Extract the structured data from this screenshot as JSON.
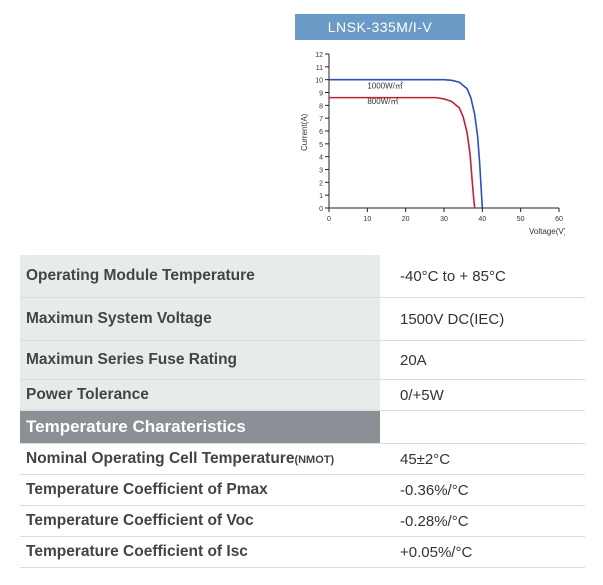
{
  "header": {
    "title": "LNSK-335M/I-V"
  },
  "chart": {
    "type": "line",
    "xlabel": "Voltage(V)",
    "ylabel": "Current(A)",
    "label_fontsize": 8,
    "tick_fontsize": 7,
    "xlim": [
      0,
      60
    ],
    "xtick_step": 10,
    "ylim": [
      0,
      12
    ],
    "ytick_step": 1,
    "background_color": "#ffffff",
    "axis_color": "#222222",
    "line_width": 1.6,
    "series": [
      {
        "name": "1000W/m²",
        "label": "1000W/㎡",
        "color": "#2a4fbf",
        "points": [
          [
            0,
            10.0
          ],
          [
            5,
            10.0
          ],
          [
            10,
            10.0
          ],
          [
            15,
            10.0
          ],
          [
            20,
            10.0
          ],
          [
            25,
            10.0
          ],
          [
            30,
            10.0
          ],
          [
            32,
            9.95
          ],
          [
            34,
            9.8
          ],
          [
            36,
            9.3
          ],
          [
            37,
            8.6
          ],
          [
            38,
            7.3
          ],
          [
            38.8,
            5.5
          ],
          [
            39.3,
            3.5
          ],
          [
            39.7,
            1.5
          ],
          [
            40,
            0
          ]
        ]
      },
      {
        "name": "800W/m²",
        "label": "800W/㎡",
        "color": "#c22034",
        "points": [
          [
            0,
            8.6
          ],
          [
            5,
            8.6
          ],
          [
            10,
            8.6
          ],
          [
            15,
            8.6
          ],
          [
            20,
            8.6
          ],
          [
            25,
            8.6
          ],
          [
            28,
            8.6
          ],
          [
            30,
            8.5
          ],
          [
            32,
            8.3
          ],
          [
            34,
            7.8
          ],
          [
            35,
            7.1
          ],
          [
            36,
            5.9
          ],
          [
            36.8,
            4.2
          ],
          [
            37.3,
            2.3
          ],
          [
            37.7,
            0.9
          ],
          [
            38,
            0
          ]
        ]
      }
    ],
    "series_label_positions": [
      {
        "x": 10,
        "y": 9.3
      },
      {
        "x": 10,
        "y": 8.1
      }
    ]
  },
  "specs": [
    {
      "label": "Operating Module Temperature",
      "value": "-40°C   to  + 85°C"
    },
    {
      "label": "Maximun System Voltage",
      "value": "1500V DC(IEC)"
    },
    {
      "label": "Maximun Series Fuse Rating",
      "value": "20A"
    },
    {
      "label": "Power Tolerance",
      "value": "0/+5W"
    }
  ],
  "section_title": "Temperature Charateristics",
  "temp_specs": [
    {
      "label_prefix": "Nominal Operating Cell Temperature",
      "label_sub": "(NMOT)",
      "value": "45±2°C"
    },
    {
      "label_prefix": "Temperature Coefficient of",
      "label_suffix": " Pmax",
      "value": "-0.36%/°C"
    },
    {
      "label_prefix": "Temperature Coefficient of",
      "label_suffix": " Voc",
      "value": "-0.28%/°C"
    },
    {
      "label_prefix": "Temperature Coefficient of",
      "label_suffix": " Isc",
      "value": "+0.05%/°C"
    }
  ]
}
